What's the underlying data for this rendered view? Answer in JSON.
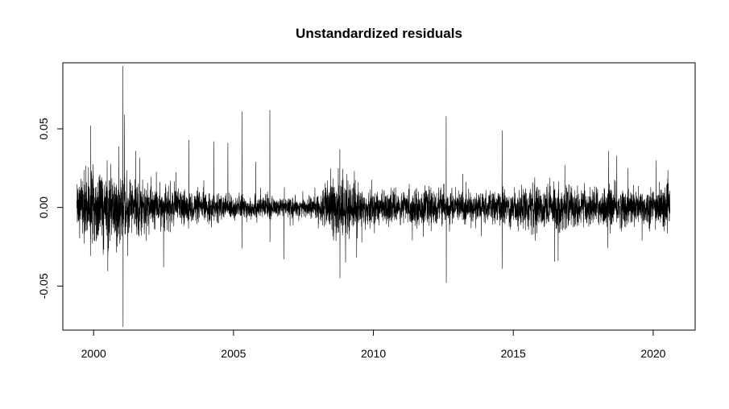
{
  "chart_data": {
    "type": "line",
    "title": "Unstandardized residuals",
    "xlabel": "",
    "ylabel": "",
    "xlim": [
      1998.9,
      2021.5
    ],
    "ylim": [
      -0.078,
      0.092
    ],
    "x_ticks": [
      2000,
      2005,
      2010,
      2015,
      2020
    ],
    "x_tick_labels": [
      "2000",
      "2005",
      "2010",
      "2015",
      "2020"
    ],
    "y_ticks": [
      -0.05,
      0.0,
      0.05
    ],
    "y_tick_labels": [
      "-0.05",
      "0.00",
      "0.05"
    ],
    "grid": false,
    "legend": "none",
    "line_color": "#000000",
    "series": [
      {
        "x_start": 1999.4,
        "x_end": 2020.6,
        "volatility_profile": [
          {
            "x": 1999.4,
            "amp": 0.01
          },
          {
            "x": 2000.0,
            "amp": 0.013
          },
          {
            "x": 2000.5,
            "amp": 0.014
          },
          {
            "x": 2001.2,
            "amp": 0.011
          },
          {
            "x": 2002.0,
            "amp": 0.008
          },
          {
            "x": 2003.0,
            "amp": 0.006
          },
          {
            "x": 2004.0,
            "amp": 0.005
          },
          {
            "x": 2005.0,
            "amp": 0.004
          },
          {
            "x": 2006.0,
            "amp": 0.004
          },
          {
            "x": 2007.0,
            "amp": 0.003
          },
          {
            "x": 2008.0,
            "amp": 0.004
          },
          {
            "x": 2008.7,
            "amp": 0.012
          },
          {
            "x": 2009.0,
            "amp": 0.01
          },
          {
            "x": 2009.5,
            "amp": 0.007
          },
          {
            "x": 2010.5,
            "amp": 0.005
          },
          {
            "x": 2011.5,
            "amp": 0.006
          },
          {
            "x": 2012.5,
            "amp": 0.006
          },
          {
            "x": 2014.0,
            "amp": 0.005
          },
          {
            "x": 2015.5,
            "amp": 0.007
          },
          {
            "x": 2016.5,
            "amp": 0.008
          },
          {
            "x": 2017.5,
            "amp": 0.006
          },
          {
            "x": 2018.5,
            "amp": 0.007
          },
          {
            "x": 2019.5,
            "amp": 0.006
          },
          {
            "x": 2020.6,
            "amp": 0.007
          }
        ],
        "spikes": [
          {
            "x": 2001.05,
            "y": 0.09
          },
          {
            "x": 2001.05,
            "y": -0.076
          },
          {
            "x": 2001.1,
            "y": 0.059
          },
          {
            "x": 1999.9,
            "y": 0.052
          },
          {
            "x": 2001.5,
            "y": 0.036
          },
          {
            "x": 2002.5,
            "y": -0.038
          },
          {
            "x": 2003.4,
            "y": 0.043
          },
          {
            "x": 2004.3,
            "y": 0.042
          },
          {
            "x": 2004.8,
            "y": 0.041
          },
          {
            "x": 2005.3,
            "y": 0.061
          },
          {
            "x": 2005.3,
            "y": -0.026
          },
          {
            "x": 2005.8,
            "y": 0.029
          },
          {
            "x": 2006.3,
            "y": 0.062
          },
          {
            "x": 2006.3,
            "y": -0.022
          },
          {
            "x": 2006.8,
            "y": -0.033
          },
          {
            "x": 2008.8,
            "y": -0.045
          },
          {
            "x": 2008.8,
            "y": 0.037
          },
          {
            "x": 2009.0,
            "y": -0.035
          },
          {
            "x": 2012.6,
            "y": 0.058
          },
          {
            "x": 2012.6,
            "y": -0.048
          },
          {
            "x": 2014.6,
            "y": 0.049
          },
          {
            "x": 2014.6,
            "y": -0.039
          },
          {
            "x": 2016.6,
            "y": -0.034
          },
          {
            "x": 2018.4,
            "y": 0.036
          },
          {
            "x": 2018.7,
            "y": 0.033
          },
          {
            "x": 2019.1,
            "y": 0.025
          },
          {
            "x": 2019.6,
            "y": -0.021
          },
          {
            "x": 2020.1,
            "y": 0.03
          }
        ]
      }
    ]
  }
}
